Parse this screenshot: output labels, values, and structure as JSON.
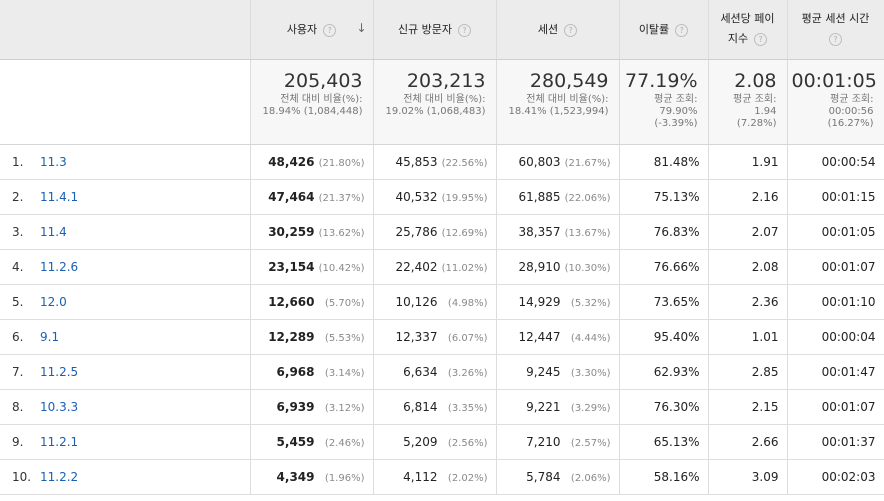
{
  "header": {
    "users": "사용자",
    "new_visitors": "신규 방문자",
    "sessions": "세션",
    "bounce_rate": "이탈률",
    "pages_per_session_l1": "세션당 페이",
    "pages_per_session_l2": "지수",
    "avg_session_l1": "평균 세션 시간",
    "help_glyph": "?",
    "sort_glyph": "↓"
  },
  "summary": {
    "users": {
      "value": "205,403",
      "l1": "전체 대비 비율(%):",
      "l2": "18.94% (1,084,448)"
    },
    "new_visitors": {
      "value": "203,213",
      "l1": "전체 대비 비율(%):",
      "l2": "19.02% (1,068,483)"
    },
    "sessions": {
      "value": "280,549",
      "l1": "전체 대비 비율(%):",
      "l2": "18.41% (1,523,994)"
    },
    "bounce_rate": {
      "value": "77.19%",
      "l1": "평균 조회:",
      "l2": "79.90%",
      "l3": "(-3.39%)"
    },
    "pages_per_session": {
      "value": "2.08",
      "l1": "평균 조회:",
      "l2": "1.94",
      "l3": "(7.28%)"
    },
    "avg_session": {
      "value": "00:01:05",
      "l1": "평균 조회:",
      "l2": "00:00:56",
      "l3": "(16.27%)"
    }
  },
  "rows": [
    {
      "idx": "1.",
      "ver": "11.3",
      "users": "48,426",
      "users_pct": "(21.80%)",
      "new": "45,853",
      "new_pct": "(22.56%)",
      "sess": "60,803",
      "sess_pct": "(21.67%)",
      "bounce": "81.48%",
      "pps": "1.91",
      "dur": "00:00:54"
    },
    {
      "idx": "2.",
      "ver": "11.4.1",
      "users": "47,464",
      "users_pct": "(21.37%)",
      "new": "40,532",
      "new_pct": "(19.95%)",
      "sess": "61,885",
      "sess_pct": "(22.06%)",
      "bounce": "75.13%",
      "pps": "2.16",
      "dur": "00:01:15"
    },
    {
      "idx": "3.",
      "ver": "11.4",
      "users": "30,259",
      "users_pct": "(13.62%)",
      "new": "25,786",
      "new_pct": "(12.69%)",
      "sess": "38,357",
      "sess_pct": "(13.67%)",
      "bounce": "76.83%",
      "pps": "2.07",
      "dur": "00:01:05"
    },
    {
      "idx": "4.",
      "ver": "11.2.6",
      "users": "23,154",
      "users_pct": "(10.42%)",
      "new": "22,402",
      "new_pct": "(11.02%)",
      "sess": "28,910",
      "sess_pct": "(10.30%)",
      "bounce": "76.66%",
      "pps": "2.08",
      "dur": "00:01:07"
    },
    {
      "idx": "5.",
      "ver": "12.0",
      "users": "12,660",
      "users_pct": "(5.70%)",
      "new": "10,126",
      "new_pct": "(4.98%)",
      "sess": "14,929",
      "sess_pct": "(5.32%)",
      "bounce": "73.65%",
      "pps": "2.36",
      "dur": "00:01:10"
    },
    {
      "idx": "6.",
      "ver": "9.1",
      "users": "12,289",
      "users_pct": "(5.53%)",
      "new": "12,337",
      "new_pct": "(6.07%)",
      "sess": "12,447",
      "sess_pct": "(4.44%)",
      "bounce": "95.40%",
      "pps": "1.01",
      "dur": "00:00:04"
    },
    {
      "idx": "7.",
      "ver": "11.2.5",
      "users": "6,968",
      "users_pct": "(3.14%)",
      "new": "6,634",
      "new_pct": "(3.26%)",
      "sess": "9,245",
      "sess_pct": "(3.30%)",
      "bounce": "62.93%",
      "pps": "2.85",
      "dur": "00:01:47"
    },
    {
      "idx": "8.",
      "ver": "10.3.3",
      "users": "6,939",
      "users_pct": "(3.12%)",
      "new": "6,814",
      "new_pct": "(3.35%)",
      "sess": "9,221",
      "sess_pct": "(3.29%)",
      "bounce": "76.30%",
      "pps": "2.15",
      "dur": "00:01:07"
    },
    {
      "idx": "9.",
      "ver": "11.2.1",
      "users": "5,459",
      "users_pct": "(2.46%)",
      "new": "5,209",
      "new_pct": "(2.56%)",
      "sess": "7,210",
      "sess_pct": "(2.57%)",
      "bounce": "65.13%",
      "pps": "2.66",
      "dur": "00:01:37"
    },
    {
      "idx": "10.",
      "ver": "11.2.2",
      "users": "4,349",
      "users_pct": "(1.96%)",
      "new": "4,112",
      "new_pct": "(2.02%)",
      "sess": "5,784",
      "sess_pct": "(2.06%)",
      "bounce": "58.16%",
      "pps": "3.09",
      "dur": "00:02:03"
    }
  ],
  "colors": {
    "header_bg": "#ececec",
    "summary_bg": "#f7f7f7",
    "link": "#1a5fb4"
  }
}
